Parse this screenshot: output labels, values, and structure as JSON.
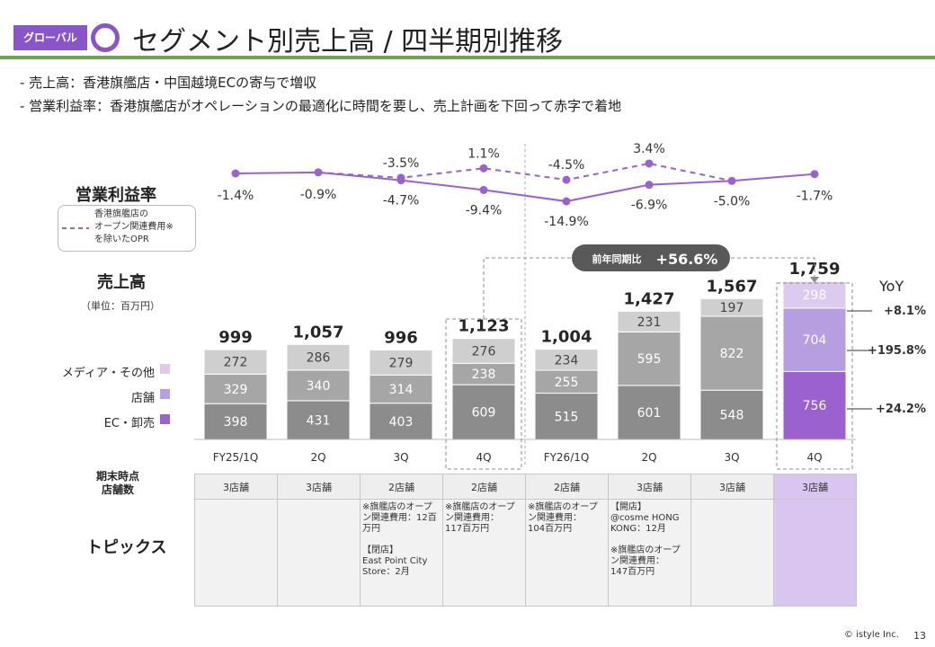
{
  "tag": "グローバル",
  "title": "セグメント別売上高 / 四半期別推移",
  "bullets": [
    "‐ 売上高：香港旗艦店・中国越境ECの寄与で増収",
    "‐ 営業利益率：香港旗艦店がオペレーションの最適化に時間を要し、売上計画を下回って赤字で着地"
  ],
  "labels": {
    "margin_title": "営業利益率",
    "margin_legend": "香港旗艦店の\nオープン関連費用※\nを除いたOPR",
    "sales_title": "売上高",
    "unit": "（単位：百万円）",
    "store_count": "期末時点\n店舗数",
    "topics": "トピックス",
    "yoy": "YoY",
    "yoy_callout_label": "前年同期比",
    "yoy_callout_value": "+56.6%"
  },
  "colors": {
    "ec": "#9a61cf",
    "store": "#b79ee0",
    "media": "#dccbee",
    "grey_dark": "#8c8c8c",
    "grey_mid": "#a6a6a6",
    "grey_light": "#cfcfcf",
    "line": "#9a61cf",
    "accent_bar": "#8a55c8",
    "rule": "#6aa84f"
  },
  "chart_data": {
    "type": "bar",
    "stacked": true,
    "categories": [
      "FY25/1Q",
      "2Q",
      "3Q",
      "4Q",
      "FY26/1Q",
      "2Q",
      "3Q",
      "4Q"
    ],
    "series": [
      {
        "name": "EC・卸売",
        "values": [
          398,
          431,
          403,
          609,
          515,
          601,
          548,
          756
        ]
      },
      {
        "name": "店舗",
        "values": [
          329,
          340,
          314,
          238,
          255,
          595,
          822,
          704
        ]
      },
      {
        "name": "メディア・その他",
        "values": [
          272,
          286,
          279,
          276,
          234,
          231,
          197,
          298
        ]
      }
    ],
    "totals": [
      "999",
      "1,057",
      "996",
      "1,123",
      "1,004",
      "1,427",
      "1,567",
      "1,759"
    ],
    "yoy": [
      "+8.1%",
      "+195.8%",
      "+24.2%"
    ],
    "operating_margin": {
      "solid": [
        -1.4,
        -0.9,
        -4.7,
        -9.4,
        -14.9,
        -6.9,
        -5.0,
        -1.7
      ],
      "solid_labels": [
        "-1.4%",
        "-0.9%",
        "-4.7%",
        "-9.4%",
        "-14.9%",
        "-6.9%",
        "-5.0%",
        "-1.7%"
      ],
      "dashed": [
        null,
        null,
        -3.5,
        1.1,
        -4.5,
        3.4,
        null,
        null
      ],
      "dashed_labels": [
        "",
        "",
        "-3.5%",
        "1.1%",
        "-4.5%",
        "3.4%",
        "",
        ""
      ]
    }
  },
  "stores": [
    "3店舗",
    "3店舗",
    "2店舗",
    "2店舗",
    "2店舗",
    "3店舗",
    "3店舗",
    "3店舗"
  ],
  "topics": [
    "",
    "",
    "※旗艦店のオープン関連費用：12百万円\n\n【閉店】\nEast Point City Store：2月",
    "※旗艦店のオープン関連費用：\n117百万円",
    "※旗艦店のオープン関連費用：\n104百万円",
    "【開店】\n@cosme HONG KONG：12月\n\n※旗艦店のオープン関連費用：\n147百万円",
    "",
    ""
  ],
  "footer": "© istyle Inc.",
  "page": "13"
}
